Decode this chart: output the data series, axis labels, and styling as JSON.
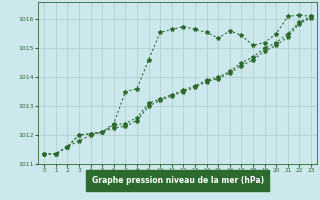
{
  "title": "Graphe pression niveau de la mer (hPa)",
  "bg_color": "#cce8ec",
  "grid_color": "#aacccc",
  "line_color": "#2d6a2d",
  "label_bg": "#2d6a2d",
  "label_fg": "#ffffff",
  "xlim": [
    -0.5,
    23.5
  ],
  "ylim": [
    1011,
    1016.6
  ],
  "yticks": [
    1011,
    1012,
    1013,
    1014,
    1015,
    1016
  ],
  "xticks": [
    0,
    1,
    2,
    3,
    4,
    5,
    6,
    7,
    8,
    9,
    10,
    11,
    12,
    13,
    14,
    15,
    16,
    17,
    18,
    19,
    20,
    21,
    22,
    23
  ],
  "series": [
    [
      1011.35,
      1011.35,
      1011.6,
      1011.8,
      1012.0,
      1012.1,
      1012.4,
      1013.5,
      1013.6,
      1014.6,
      1015.55,
      1015.65,
      1015.75,
      1015.65,
      1015.55,
      1015.35,
      1015.6,
      1015.45,
      1015.1,
      1015.2,
      1015.5,
      1016.1,
      1016.15,
      1016.1
    ],
    [
      1011.35,
      1011.35,
      1011.6,
      1012.0,
      1012.05,
      1012.1,
      1012.35,
      1012.4,
      1012.6,
      1013.1,
      1013.25,
      1013.4,
      1013.55,
      1013.7,
      1013.9,
      1014.0,
      1014.2,
      1014.5,
      1014.7,
      1015.0,
      1015.2,
      1015.5,
      1015.9,
      1016.1
    ],
    [
      1011.35,
      1011.35,
      1011.6,
      1012.0,
      1012.05,
      1012.1,
      1012.25,
      1012.3,
      1012.5,
      1013.0,
      1013.2,
      1013.35,
      1013.5,
      1013.65,
      1013.85,
      1013.95,
      1014.15,
      1014.4,
      1014.6,
      1014.9,
      1015.1,
      1015.4,
      1015.85,
      1016.05
    ]
  ]
}
